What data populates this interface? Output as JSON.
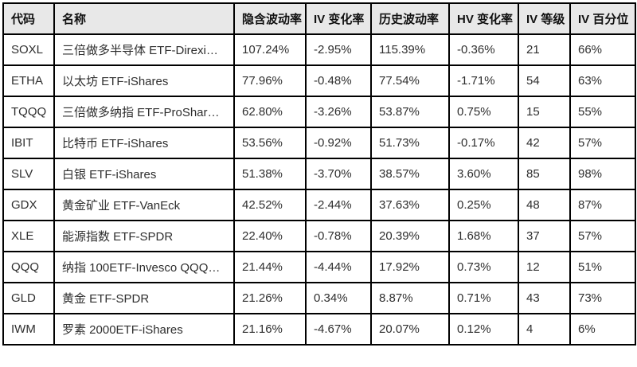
{
  "table": {
    "colors": {
      "header_bg": "#e8e8e8",
      "row_bg": "#ffffff",
      "border": "#000000",
      "header_text": "#111111",
      "cell_text": "#2e2e2e"
    },
    "columns": [
      {
        "key": "code",
        "label": "代码"
      },
      {
        "key": "name",
        "label": "名称"
      },
      {
        "key": "implied_volatility",
        "label": "隐含波动率"
      },
      {
        "key": "iv_change",
        "label": "IV 变化率"
      },
      {
        "key": "historical_volatility",
        "label": "历史波动率"
      },
      {
        "key": "hv_change",
        "label": "HV 变化率"
      },
      {
        "key": "iv_rank",
        "label": "IV 等级"
      },
      {
        "key": "iv_percentile",
        "label": "IV 百分位"
      }
    ],
    "rows": [
      [
        "SOXL",
        "三倍做多半导体 ETF-Direxi…",
        "107.24%",
        "-2.95%",
        "115.39%",
        "-0.36%",
        "21",
        "66%"
      ],
      [
        "ETHA",
        "以太坊 ETF-iShares",
        "77.96%",
        "-0.48%",
        "77.54%",
        "-1.71%",
        "54",
        "63%"
      ],
      [
        "TQQQ",
        "三倍做多纳指 ETF-ProShar…",
        "62.80%",
        "-3.26%",
        "53.87%",
        "0.75%",
        "15",
        "55%"
      ],
      [
        "IBIT",
        "比特币 ETF-iShares",
        "53.56%",
        "-0.92%",
        "51.73%",
        "-0.17%",
        "42",
        "57%"
      ],
      [
        "SLV",
        "白银 ETF-iShares",
        "51.38%",
        "-3.70%",
        "38.57%",
        "3.60%",
        "85",
        "98%"
      ],
      [
        "GDX",
        "黄金矿业 ETF-VanEck",
        "42.52%",
        "-2.44%",
        "37.63%",
        "0.25%",
        "48",
        "87%"
      ],
      [
        "XLE",
        "能源指数 ETF-SPDR",
        "22.40%",
        "-0.78%",
        "20.39%",
        "1.68%",
        "37",
        "57%"
      ],
      [
        "QQQ",
        "纳指 100ETF-Invesco QQQ…",
        "21.44%",
        "-4.44%",
        "17.92%",
        "0.73%",
        "12",
        "51%"
      ],
      [
        "GLD",
        "黄金 ETF-SPDR",
        "21.26%",
        "0.34%",
        "8.87%",
        "0.71%",
        "43",
        "73%"
      ],
      [
        "IWM",
        "罗素 2000ETF-iShares",
        "21.16%",
        "-4.67%",
        "20.07%",
        "0.12%",
        "4",
        "6%"
      ]
    ]
  }
}
